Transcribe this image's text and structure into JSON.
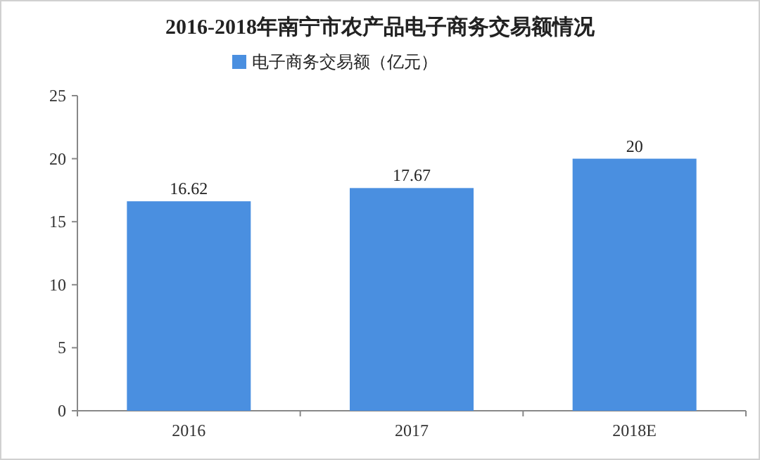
{
  "chart_data": {
    "type": "bar",
    "title": "2016-2018年南宁市农产品电子商务交易额情况",
    "categories": [
      "2016",
      "2017",
      "2018E"
    ],
    "series": [
      {
        "name": "电子商务交易额（亿元）",
        "color": "#4a8fe0",
        "values": [
          16.62,
          17.67,
          20
        ]
      }
    ],
    "ylim": [
      0,
      25
    ],
    "yticks": [
      0,
      5,
      10,
      15,
      20,
      25
    ],
    "data_labels": true,
    "legend": "top",
    "grid": false
  }
}
